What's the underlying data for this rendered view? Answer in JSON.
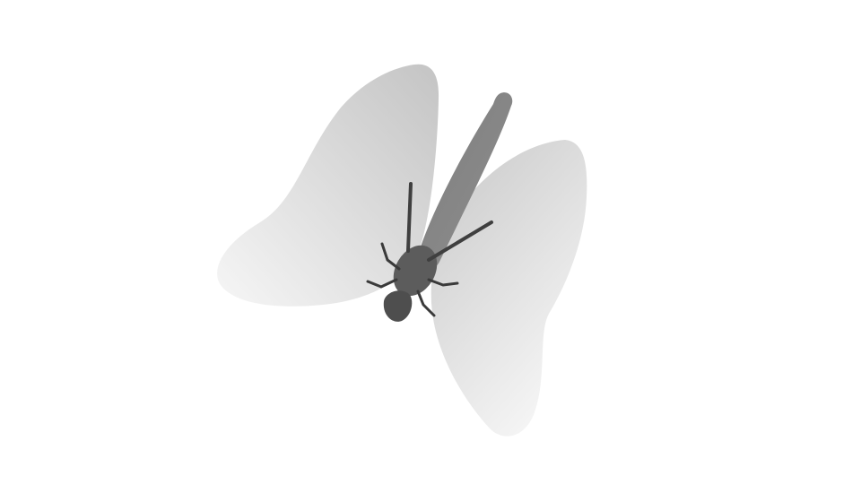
{
  "scene": {
    "subject": "dragonfly",
    "background_color": "#ffffff",
    "colors": {
      "wing_dark": "#c9c9c9",
      "wing_light": "#f4f4f4",
      "abdomen_dark": "#6f6f6f",
      "abdomen_light": "#909090",
      "thorax": "#5a5a5a",
      "head": "#4e4e4e",
      "legs": "#3a3a3a",
      "antennae": "#444444"
    }
  }
}
